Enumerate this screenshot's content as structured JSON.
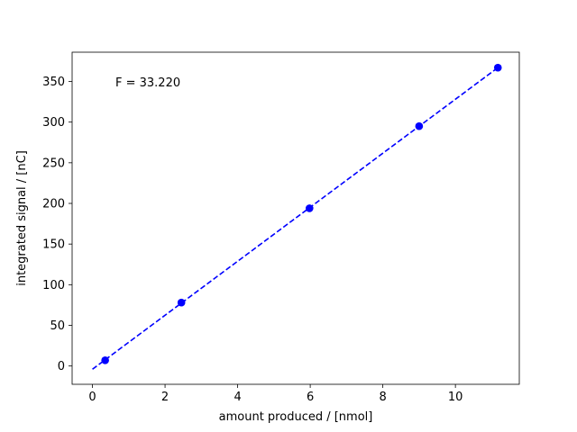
{
  "chart_data": {
    "type": "scatter",
    "xlabel": "amount produced / [nmol]",
    "ylabel": "integrated signal / [nC]",
    "annotation": "F = 33.220",
    "xlim": [
      -0.56,
      11.76
    ],
    "ylim": [
      -22.5,
      386
    ],
    "x_ticks": [
      0,
      2,
      4,
      6,
      8,
      10
    ],
    "y_ticks": [
      0,
      50,
      100,
      150,
      200,
      250,
      300,
      350
    ],
    "grid": false,
    "legend": "none",
    "series": [
      {
        "type": "scatter",
        "color": "#0000ff",
        "marker": "circle",
        "points": [
          {
            "x": 0.35,
            "y": 7
          },
          {
            "x": 2.45,
            "y": 78
          },
          {
            "x": 5.98,
            "y": 194
          },
          {
            "x": 9.0,
            "y": 295
          },
          {
            "x": 11.17,
            "y": 367
          }
        ]
      },
      {
        "type": "line",
        "style": "dashed",
        "color": "#0000ff",
        "points": [
          {
            "x": 0.0,
            "y": -4
          },
          {
            "x": 11.17,
            "y": 367
          }
        ]
      }
    ]
  }
}
